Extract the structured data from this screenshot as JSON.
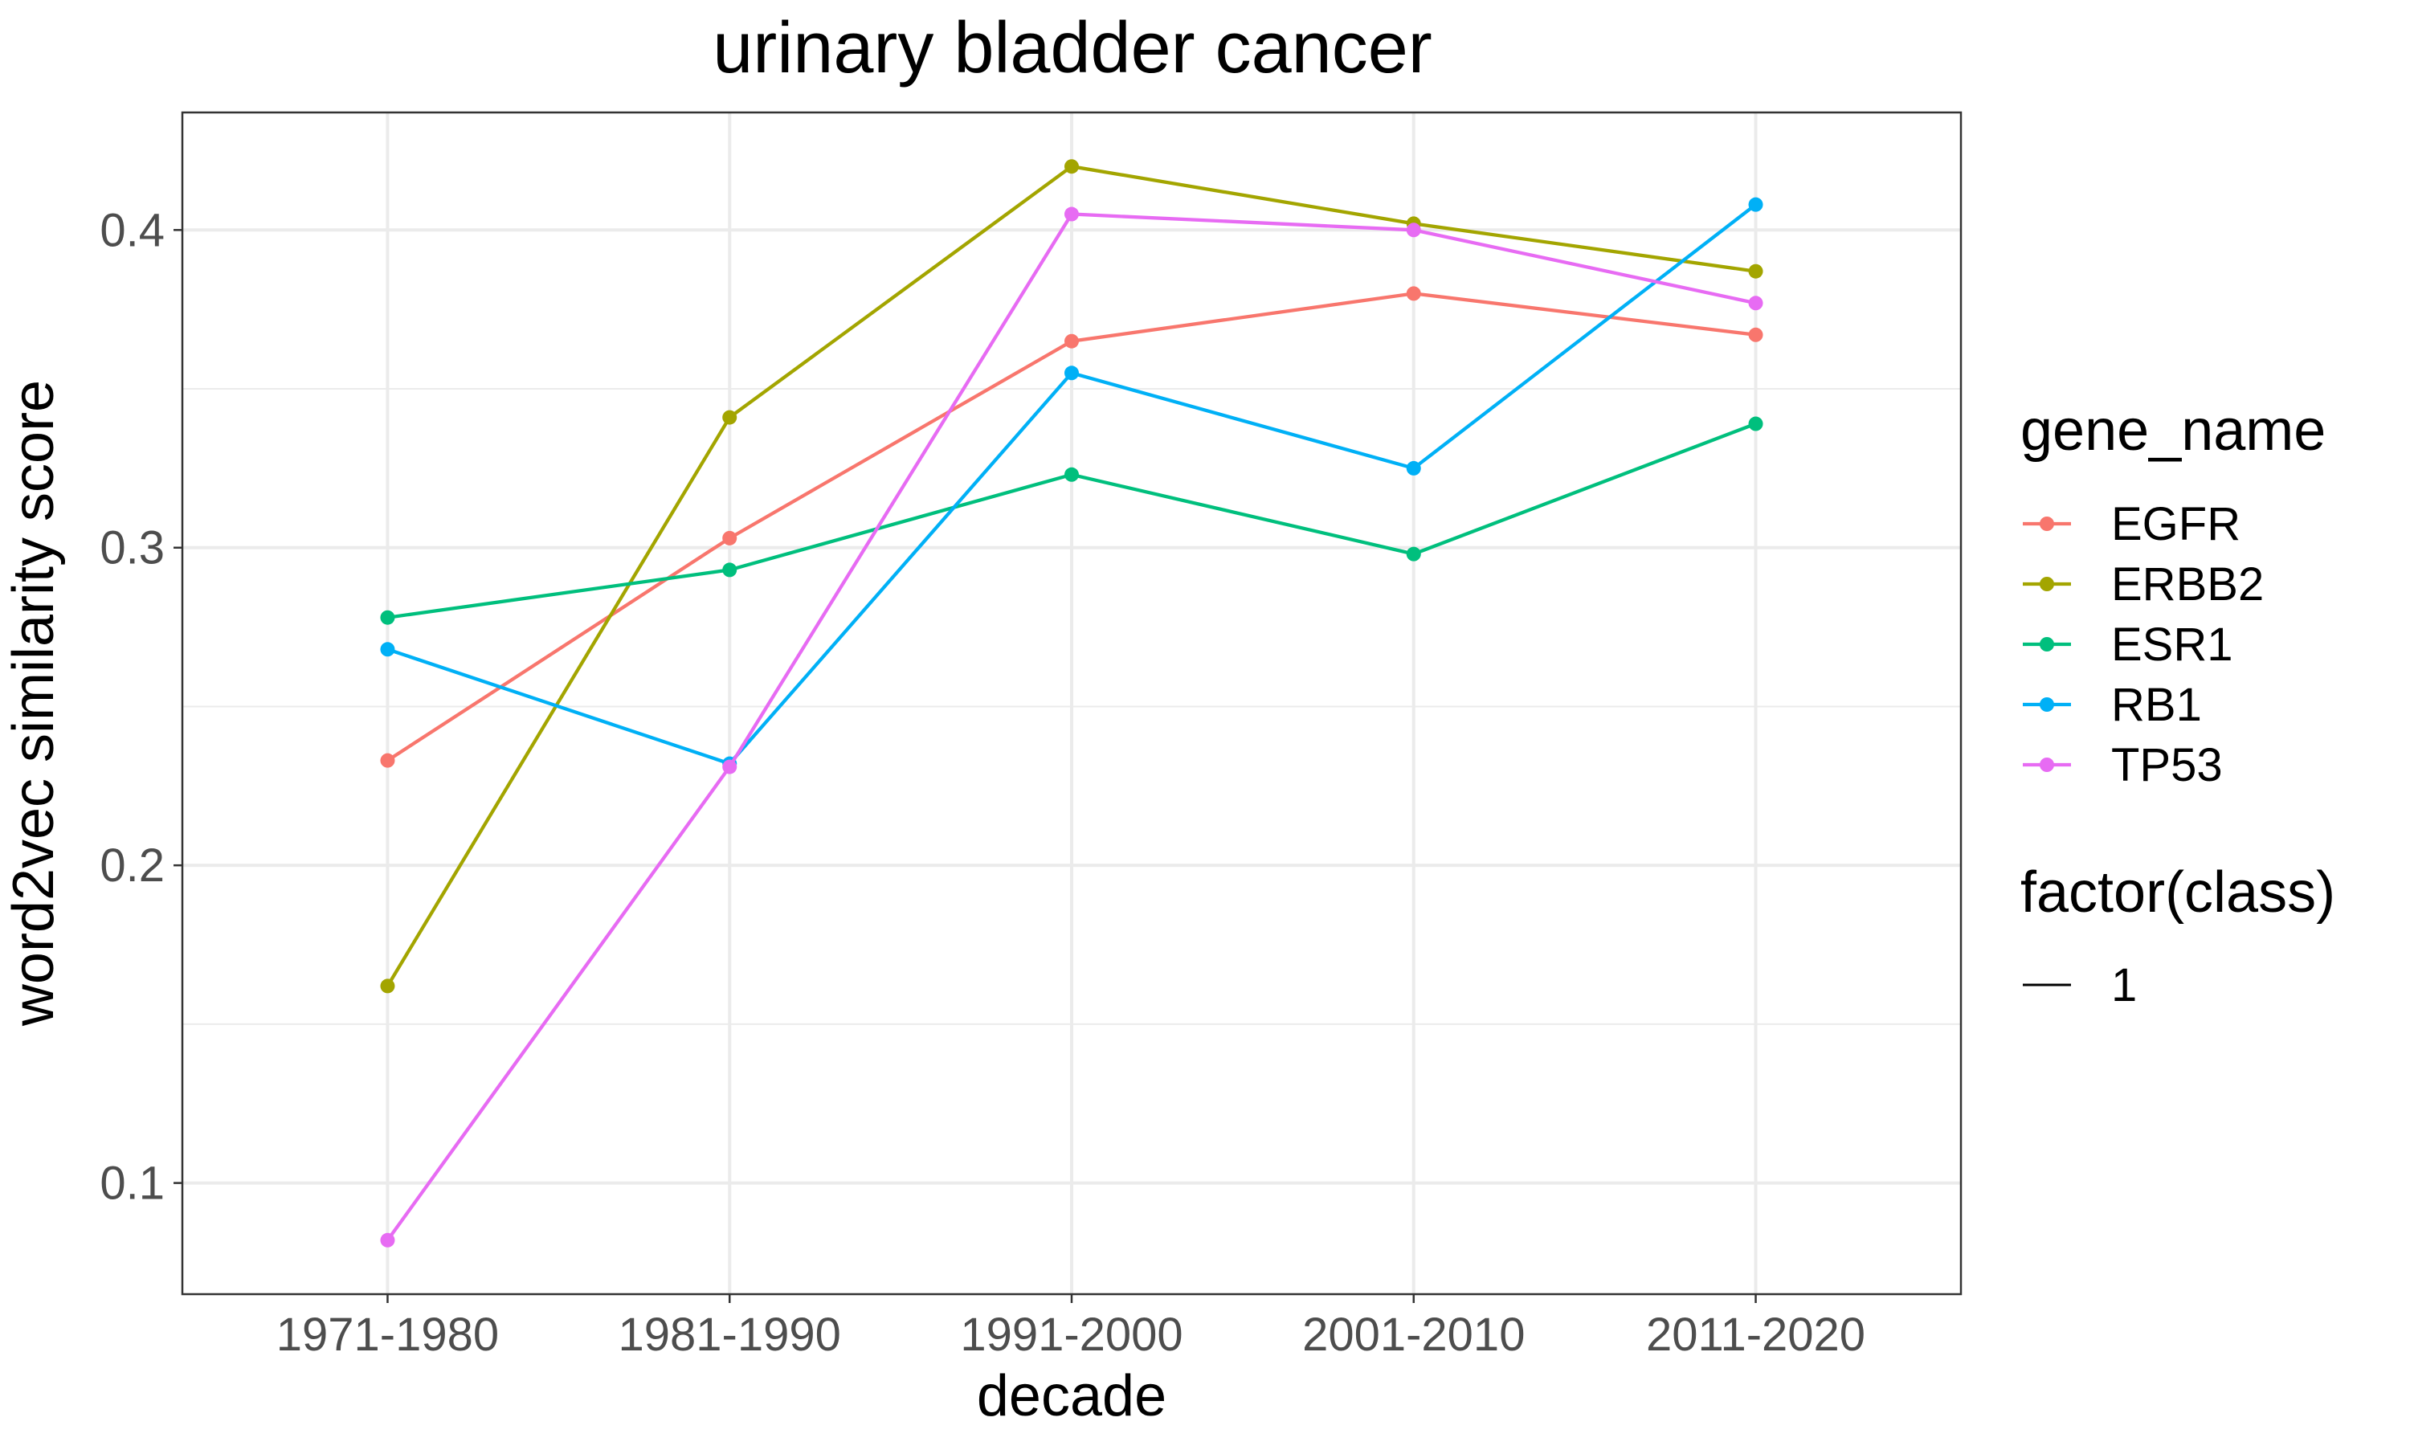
{
  "chart_data": {
    "type": "line",
    "title": "urinary bladder cancer",
    "xlabel": "decade",
    "ylabel": "word2vec similarity score",
    "categories": [
      "1971-1980",
      "1981-1990",
      "1991-2000",
      "2001-2010",
      "2011-2020"
    ],
    "ylim": [
      0.065,
      0.437
    ],
    "yticks": [
      0.1,
      0.2,
      0.3,
      0.4
    ],
    "ytick_labels": [
      "0.1",
      "0.2",
      "0.3",
      "0.4"
    ],
    "grid": true,
    "legend_position": "right",
    "series": [
      {
        "name": "EGFR",
        "color": "#F8766D",
        "values": [
          0.233,
          0.303,
          0.365,
          0.38,
          0.367
        ]
      },
      {
        "name": "ERBB2",
        "color": "#A3A500",
        "values": [
          0.162,
          0.341,
          0.42,
          0.402,
          0.387
        ]
      },
      {
        "name": "ESR1",
        "color": "#00BF7D",
        "values": [
          0.278,
          0.293,
          0.323,
          0.298,
          0.339
        ]
      },
      {
        "name": "RB1",
        "color": "#00B0F6",
        "values": [
          0.268,
          0.232,
          0.355,
          0.325,
          0.408
        ]
      },
      {
        "name": "TP53",
        "color": "#E76BF3",
        "values": [
          0.082,
          0.231,
          0.405,
          0.4,
          0.377
        ]
      }
    ],
    "legends": [
      {
        "title": "gene_name"
      },
      {
        "title": "factor(class)",
        "items": [
          "1"
        ]
      }
    ]
  }
}
